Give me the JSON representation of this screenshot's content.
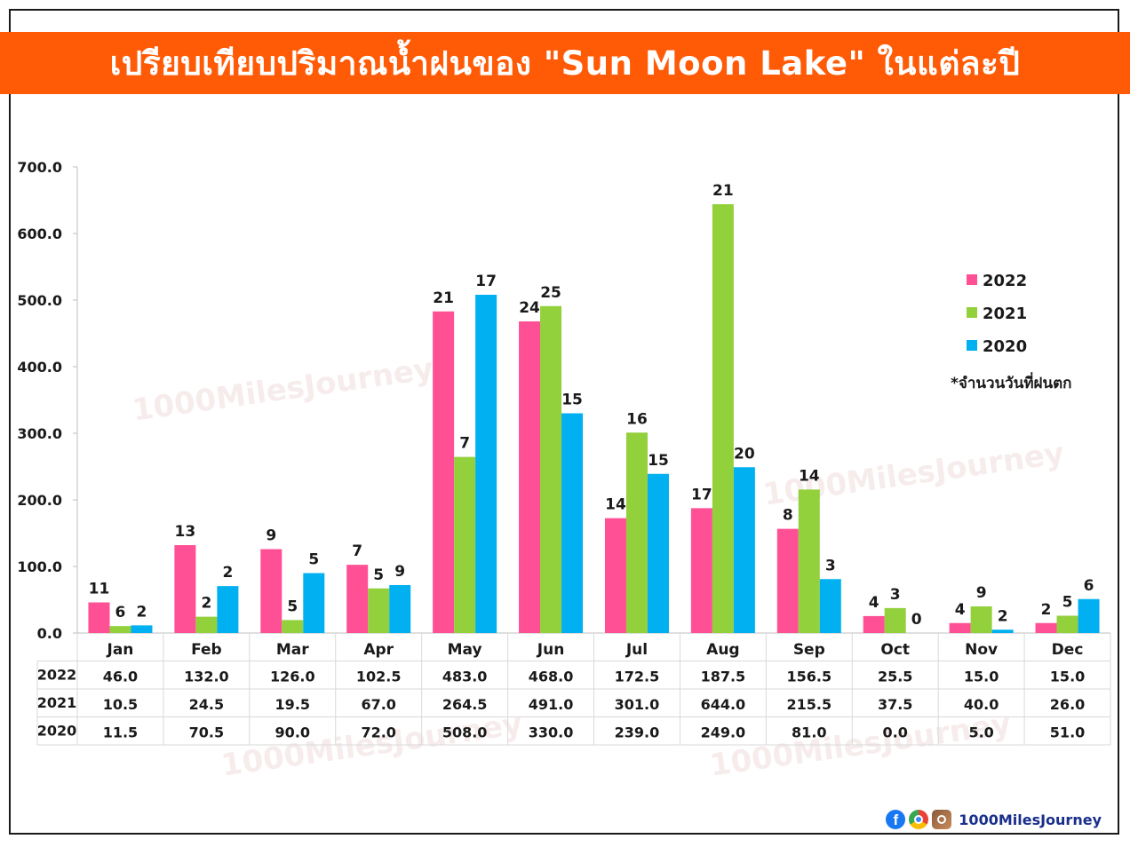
{
  "title": "เปรียบเทียบปริมาณน้ำฝนของ \"Sun Moon Lake\" ในแต่ละปี",
  "note": "*จำนวนวันที่ฝนตก",
  "watermark": "1000MilesJourney",
  "brand": "1000MilesJourney",
  "footer_icons": [
    "facebook-icon",
    "chrome-icon",
    "instagram-icon"
  ],
  "colors": {
    "2022": "#ff5096",
    "2021": "#92d03c",
    "2020": "#00b0f0",
    "title_bar": "#ff5a06"
  },
  "chart_data": {
    "type": "bar",
    "title": "",
    "xlabel": "",
    "ylabel": "",
    "ylim": [
      0,
      700
    ],
    "yticks": [
      "0.0",
      "100.0",
      "200.0",
      "300.0",
      "400.0",
      "500.0",
      "600.0",
      "700.0"
    ],
    "categories": [
      "Jan",
      "Feb",
      "Mar",
      "Apr",
      "May",
      "Jun",
      "Jul",
      "Aug",
      "Sep",
      "Oct",
      "Nov",
      "Dec"
    ],
    "legend_position": "right",
    "series": [
      {
        "name": "2022",
        "values": [
          46.0,
          132.0,
          126.0,
          102.5,
          483.0,
          468.0,
          172.5,
          187.5,
          156.5,
          25.5,
          15.0,
          15.0
        ],
        "value_labels": [
          "46.0",
          "132.0",
          "126.0",
          "102.5",
          "483.0",
          "468.0",
          "172.5",
          "187.5",
          "156.5",
          "25.5",
          "15.0",
          "15.0"
        ],
        "rain_days": [
          11,
          13,
          9,
          7,
          21,
          24,
          14,
          17,
          8,
          4,
          4,
          2
        ]
      },
      {
        "name": "2021",
        "values": [
          10.5,
          24.5,
          19.5,
          67.0,
          264.5,
          491.0,
          301.0,
          644.0,
          215.5,
          37.5,
          40.0,
          26.0
        ],
        "value_labels": [
          "10.5",
          "24.5",
          "19.5",
          "67.0",
          "264.5",
          "491.0",
          "301.0",
          "644.0",
          "215.5",
          "37.5",
          "40.0",
          "26.0"
        ],
        "rain_days": [
          6,
          2,
          5,
          5,
          7,
          25,
          16,
          21,
          14,
          3,
          9,
          5
        ]
      },
      {
        "name": "2020",
        "values": [
          11.5,
          70.5,
          90.0,
          72.0,
          508.0,
          330.0,
          239.0,
          249.0,
          81.0,
          0.0,
          5.0,
          51.0
        ],
        "value_labels": [
          "11.5",
          "70.5",
          "90.0",
          "72.0",
          "508.0",
          "330.0",
          "239.0",
          "249.0",
          "81.0",
          "0.0",
          "5.0",
          "51.0"
        ],
        "rain_days": [
          2,
          2,
          5,
          9,
          17,
          15,
          15,
          20,
          3,
          0,
          2,
          6
        ]
      }
    ]
  }
}
